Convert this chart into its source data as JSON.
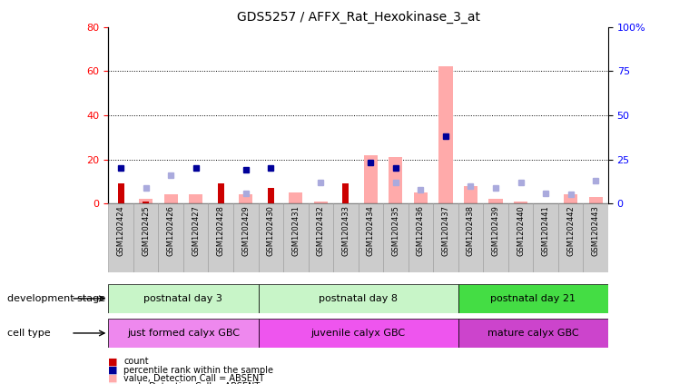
{
  "title": "GDS5257 / AFFX_Rat_Hexokinase_3_at",
  "samples": [
    "GSM1202424",
    "GSM1202425",
    "GSM1202426",
    "GSM1202427",
    "GSM1202428",
    "GSM1202429",
    "GSM1202430",
    "GSM1202431",
    "GSM1202432",
    "GSM1202433",
    "GSM1202434",
    "GSM1202435",
    "GSM1202436",
    "GSM1202437",
    "GSM1202438",
    "GSM1202439",
    "GSM1202440",
    "GSM1202441",
    "GSM1202442",
    "GSM1202443"
  ],
  "count_values": [
    9,
    1,
    0,
    0,
    9,
    0,
    7,
    0,
    0,
    9,
    0,
    0,
    0,
    0,
    0,
    0,
    0,
    0,
    0,
    0
  ],
  "percentile_rank": [
    20,
    0,
    0,
    20,
    0,
    19,
    20,
    0,
    0,
    0,
    23,
    20,
    0,
    38,
    0,
    0,
    0,
    0,
    0,
    0
  ],
  "value_absent": [
    0,
    2,
    4,
    4,
    0,
    4,
    0,
    5,
    1,
    0,
    22,
    21,
    5,
    62,
    8,
    2,
    1,
    0,
    4,
    3
  ],
  "rank_absent": [
    0,
    9,
    16,
    0,
    0,
    6,
    0,
    0,
    12,
    0,
    0,
    12,
    8,
    0,
    10,
    9,
    12,
    6,
    5,
    13
  ],
  "dev_stage_groups": [
    {
      "label": "postnatal day 3",
      "start": 0,
      "end": 6,
      "color": "#c8f5c8"
    },
    {
      "label": "postnatal day 8",
      "start": 6,
      "end": 14,
      "color": "#c8f5c8"
    },
    {
      "label": "postnatal day 21",
      "start": 14,
      "end": 20,
      "color": "#44dd44"
    }
  ],
  "cell_type_groups": [
    {
      "label": "just formed calyx GBC",
      "start": 0,
      "end": 6,
      "color": "#ee88ee"
    },
    {
      "label": "juvenile calyx GBC",
      "start": 6,
      "end": 14,
      "color": "#ee55ee"
    },
    {
      "label": "mature calyx GBC",
      "start": 14,
      "end": 20,
      "color": "#cc44cc"
    }
  ],
  "ylim_left": [
    0,
    80
  ],
  "ylim_right": [
    0,
    100
  ],
  "yticks_left": [
    0,
    20,
    40,
    60,
    80
  ],
  "yticks_right": [
    0,
    25,
    50,
    75,
    100
  ],
  "count_color": "#cc0000",
  "percentile_color": "#000099",
  "value_absent_color": "#ffaaaa",
  "rank_absent_color": "#aaaadd",
  "background_color": "#ffffff",
  "title_fontsize": 10,
  "tick_fontsize": 8,
  "label_fontsize": 8,
  "legend_fontsize": 8
}
